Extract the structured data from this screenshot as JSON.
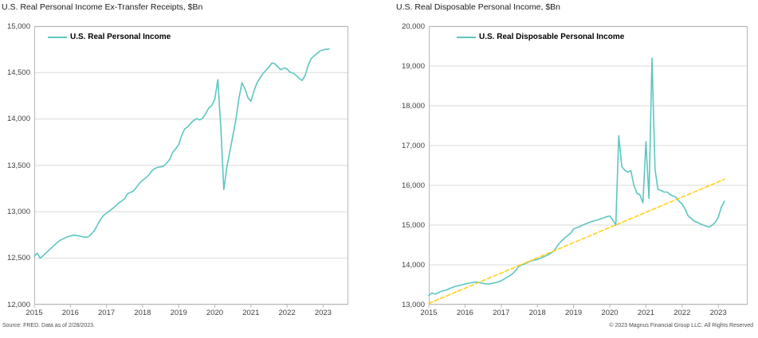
{
  "footer": {
    "source_note": "Source: FRED. Data as of 2/28/2023.",
    "copyright": "© 2023 Magnus Financial Group LLC. All Rights Reserved"
  },
  "colors": {
    "series_teal": "#5cc6c1",
    "trend_yellow": "#ffd01e",
    "gridline": "#d9d9d9",
    "plot_border": "#b8b8b8",
    "axis_text": "#404040"
  },
  "chart_data": [
    {
      "type": "line",
      "title": "U.S. Real Personal Income Ex-Transfer Receipts, $Bn",
      "ylabel": "",
      "xlabel": "",
      "ylim": [
        12000,
        15000
      ],
      "y_tick_step": 500,
      "x_ticks": [
        2015,
        2016,
        2017,
        2018,
        2019,
        2020,
        2021,
        2022,
        2023
      ],
      "grid": "horizontal",
      "legend_position": "top-left-inside",
      "legend": [
        {
          "label": "U.S. Real Personal Income",
          "color": "#5cc6c1",
          "style": "solid"
        }
      ],
      "series": [
        {
          "name": "U.S. Real Personal Income",
          "color": "#5cc6c1",
          "style": "solid",
          "x_start_year": 2015,
          "points_per_year": 12,
          "values": [
            12520,
            12555,
            12500,
            12530,
            12560,
            12590,
            12620,
            12650,
            12680,
            12700,
            12715,
            12730,
            12740,
            12748,
            12745,
            12740,
            12732,
            12725,
            12730,
            12760,
            12800,
            12860,
            12915,
            12960,
            12985,
            13010,
            13035,
            13060,
            13095,
            13115,
            13140,
            13195,
            13210,
            13225,
            13265,
            13310,
            13340,
            13365,
            13395,
            13440,
            13465,
            13480,
            13485,
            13495,
            13525,
            13565,
            13640,
            13680,
            13725,
            13825,
            13895,
            13915,
            13955,
            13985,
            14005,
            13990,
            14010,
            14060,
            14120,
            14145,
            14215,
            14425,
            13900,
            13240,
            13480,
            13650,
            13820,
            13990,
            14220,
            14390,
            14330,
            14230,
            14190,
            14300,
            14390,
            14440,
            14490,
            14525,
            14560,
            14605,
            14595,
            14560,
            14530,
            14550,
            14540,
            14505,
            14495,
            14470,
            14440,
            14415,
            14470,
            14575,
            14650,
            14680,
            14705,
            14735,
            14745,
            14752,
            14755
          ]
        }
      ]
    },
    {
      "type": "line",
      "title": "U.S. Real Disposable Personal Income, $Bn",
      "ylabel": "",
      "xlabel": "",
      "ylim": [
        13000,
        20000
      ],
      "y_tick_step": 1000,
      "x_ticks": [
        2015,
        2016,
        2017,
        2018,
        2019,
        2020,
        2021,
        2022,
        2023
      ],
      "grid": "horizontal",
      "legend_position": "top-left-inside",
      "legend": [
        {
          "label": "U.S. Real Disposable Personal Income",
          "color": "#5cc6c1",
          "style": "solid"
        }
      ],
      "series": [
        {
          "name": "U.S. Real Disposable Personal Income",
          "color": "#5cc6c1",
          "style": "solid",
          "x_start_year": 2015,
          "points_per_year": 12,
          "values": [
            13230,
            13295,
            13265,
            13290,
            13330,
            13350,
            13370,
            13410,
            13435,
            13465,
            13480,
            13495,
            13520,
            13535,
            13550,
            13565,
            13565,
            13550,
            13535,
            13522,
            13520,
            13535,
            13550,
            13568,
            13600,
            13645,
            13690,
            13735,
            13790,
            13880,
            13970,
            14000,
            14030,
            14070,
            14100,
            14120,
            14135,
            14165,
            14200,
            14235,
            14270,
            14320,
            14400,
            14520,
            14600,
            14670,
            14730,
            14790,
            14900,
            14935,
            14960,
            15000,
            15030,
            15060,
            15090,
            15110,
            15130,
            15160,
            15180,
            15210,
            15230,
            15130,
            15000,
            17250,
            16470,
            16380,
            16330,
            16370,
            16000,
            15800,
            15760,
            15560,
            17100,
            15670,
            19200,
            16400,
            15900,
            15870,
            15830,
            15830,
            15770,
            15730,
            15700,
            15600,
            15530,
            15400,
            15230,
            15170,
            15100,
            15070,
            15030,
            15000,
            14970,
            14950,
            15000,
            15070,
            15200,
            15450,
            15600
          ]
        },
        {
          "name": "Linear trend",
          "color": "#ffd01e",
          "style": "dashed",
          "x": [
            2015.0,
            2023.17
          ],
          "values": [
            13030,
            16150
          ]
        }
      ]
    }
  ]
}
